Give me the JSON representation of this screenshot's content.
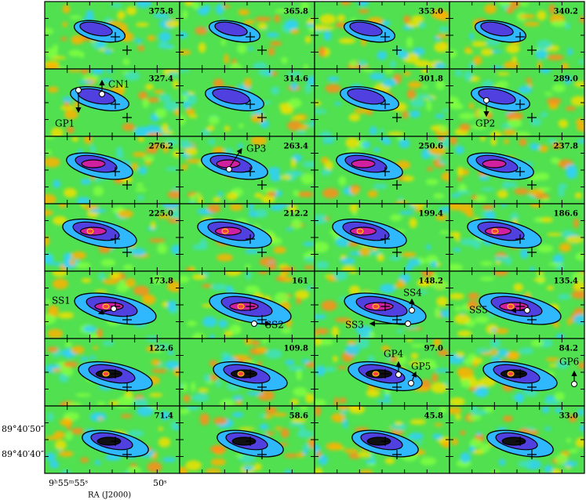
{
  "panels": [
    "375.8",
    "365.8",
    "353.0",
    "340.2",
    "327.4",
    "314.6",
    "301.8",
    "289.0",
    "276.2",
    "263.4",
    "250.6",
    "237.8",
    "225.0",
    "212.2",
    "199.4",
    "186.6",
    "173.8",
    "161",
    "148.2",
    "135.4",
    "122.6",
    "109.8",
    "97.0",
    "84.2",
    "71.4",
    "58.6",
    "45.8",
    "33.0"
  ],
  "annotations": [
    "CN1",
    "GP1",
    "GP2",
    "GP3",
    "SS1",
    "SS2",
    "SS3",
    "SS4",
    "SS5",
    "GP4",
    "GP5",
    "GP6"
  ],
  "axes": {
    "dec_ticks": [
      "89°40′50″",
      "89°40′40″"
    ],
    "ra_ticks": [
      "9ʰ55ᵐ55ˢ",
      "50ˢ"
    ],
    "ra_label": "RA (J2000)"
  }
}
